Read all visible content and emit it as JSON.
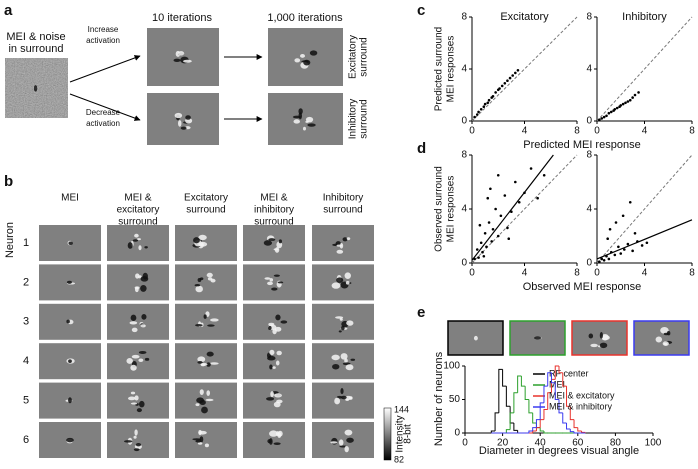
{
  "panel_a": {
    "label": "a",
    "input_caption": [
      "MEI & noise",
      "in surround"
    ],
    "increase": [
      "Increase",
      "activation"
    ],
    "decrease": [
      "Decrease",
      "activation"
    ],
    "col_10": "10 iterations",
    "col_1000": "1,000 iterations",
    "row_exc": [
      "Excitatory",
      "surround"
    ],
    "row_inh": [
      "Inhibitory",
      "surround"
    ]
  },
  "panel_b": {
    "label": "b",
    "columns": [
      [
        "MEI"
      ],
      [
        "MEI &",
        "excitatory",
        "surround"
      ],
      [
        "Excitatory",
        "surround"
      ],
      [
        "MEI &",
        "inhibitory",
        "surround"
      ],
      [
        "Inhibitory",
        "surround"
      ]
    ],
    "row_axis": "Neuron",
    "rows": [
      1,
      2,
      3,
      4,
      5,
      6
    ],
    "colorbar": {
      "max": 144,
      "min": 82,
      "label": [
        "Intensity",
        "8-bit"
      ]
    }
  },
  "chart_data": [
    {
      "type": "scatter",
      "label": "c",
      "ylabel": [
        "Predicted surround",
        "MEI responses"
      ],
      "xlabel": "Predicted MEI response",
      "xlim": [
        0,
        8
      ],
      "ylim": [
        0,
        8
      ],
      "xticks": [
        0,
        4,
        8
      ],
      "yticks": [
        0,
        4,
        8
      ],
      "subplots": [
        {
          "title": "Excitatory",
          "x": [
            0.2,
            0.4,
            0.5,
            0.7,
            0.9,
            1.0,
            1.2,
            1.3,
            1.5,
            1.6,
            1.8,
            2.0,
            2.1,
            2.3,
            2.5,
            2.7,
            2.9,
            3.1,
            3.3,
            3.5
          ],
          "y": [
            0.3,
            0.5,
            0.7,
            0.9,
            1.1,
            1.3,
            1.4,
            1.6,
            1.8,
            1.9,
            2.2,
            2.4,
            2.5,
            2.7,
            2.9,
            3.1,
            3.3,
            3.5,
            3.7,
            3.9
          ]
        },
        {
          "title": "Inhibitory",
          "x": [
            0.2,
            0.4,
            0.6,
            0.8,
            1.0,
            1.2,
            1.4,
            1.5,
            1.7,
            1.9,
            2.0,
            2.2,
            2.4,
            2.6,
            2.8,
            3.0,
            3.2,
            3.5
          ],
          "y": [
            0.1,
            0.2,
            0.3,
            0.4,
            0.6,
            0.7,
            0.8,
            0.9,
            1.0,
            1.1,
            1.2,
            1.3,
            1.4,
            1.5,
            1.6,
            1.8,
            2.0,
            2.2
          ]
        }
      ]
    },
    {
      "type": "scatter",
      "label": "d",
      "ylabel": [
        "Observed surround",
        "MEI responses"
      ],
      "xlabel": "Observed MEI response",
      "xlim": [
        0,
        8
      ],
      "ylim": [
        0,
        8
      ],
      "xticks": [
        0,
        4,
        8
      ],
      "yticks": [
        0,
        4,
        8
      ],
      "subplots": [
        {
          "x": [
            0.2,
            0.4,
            0.5,
            0.7,
            0.8,
            1.0,
            1.1,
            1.3,
            1.5,
            1.6,
            1.8,
            2.0,
            2.2,
            2.5,
            2.7,
            3.0,
            3.3,
            3.6,
            4.0,
            4.5,
            5.0,
            5.5,
            0.6,
            1.2,
            2.0,
            0.9,
            1.4,
            2.8
          ],
          "y": [
            0.3,
            1.0,
            0.4,
            1.5,
            0.8,
            2.2,
            1.2,
            3.0,
            1.6,
            2.5,
            4.0,
            2.0,
            3.5,
            5.0,
            2.6,
            3.8,
            6.0,
            4.5,
            5.2,
            7.0,
            4.8,
            6.5,
            2.8,
            4.8,
            6.5,
            0.5,
            5.5,
            1.8
          ],
          "fit_x": [
            0,
            6.2
          ],
          "fit_y": [
            0.2,
            8
          ]
        },
        {
          "x": [
            0.2,
            0.4,
            0.6,
            0.8,
            1.0,
            1.2,
            1.5,
            1.8,
            2.0,
            2.3,
            2.6,
            3.0,
            3.4,
            3.8,
            4.2,
            1.1,
            1.6,
            2.2,
            0.9,
            2.8,
            3.2
          ],
          "y": [
            0.1,
            0.3,
            0.2,
            0.5,
            0.3,
            0.8,
            0.6,
            1.2,
            0.7,
            1.0,
            1.4,
            0.9,
            1.6,
            1.3,
            1.5,
            2.5,
            3.0,
            3.5,
            1.8,
            4.5,
            2.2
          ],
          "fit_x": [
            0,
            8
          ],
          "fit_y": [
            0.3,
            3.2
          ]
        }
      ]
    },
    {
      "type": "histogram",
      "label": "e",
      "ylabel": "Number of neurons",
      "xlabel": "Diameter in degrees visual angle",
      "xlim": [
        0,
        100
      ],
      "ylim": [
        0,
        100
      ],
      "xticks": [
        0,
        20,
        40,
        60,
        80,
        100
      ],
      "yticks": [
        0,
        50,
        100
      ],
      "bins": [
        14,
        16,
        18,
        20,
        22,
        24,
        26,
        28,
        30,
        32,
        34,
        36,
        38,
        40,
        42,
        44,
        46,
        48,
        50,
        52,
        54,
        56,
        58,
        60,
        62,
        64
      ],
      "series": [
        {
          "name": "RF center",
          "color": "#000000",
          "values": [
            3,
            30,
            95,
            70,
            40,
            15,
            4,
            0,
            0,
            0,
            0,
            0,
            0,
            0,
            0,
            0,
            0,
            0,
            0,
            0,
            0,
            0,
            0,
            0,
            0
          ]
        },
        {
          "name": "MEI",
          "color": "#2ca02c",
          "values": [
            0,
            0,
            0,
            0,
            5,
            30,
            60,
            85,
            70,
            50,
            30,
            15,
            8,
            3,
            0,
            0,
            0,
            0,
            0,
            0,
            0,
            0,
            0,
            0,
            0
          ]
        },
        {
          "name": "MEI & excitatory",
          "color": "#e8322c",
          "values": [
            0,
            0,
            0,
            0,
            0,
            0,
            0,
            0,
            0,
            0,
            0,
            3,
            8,
            20,
            35,
            60,
            80,
            100,
            90,
            70,
            40,
            20,
            8,
            3,
            1
          ]
        },
        {
          "name": "MEI & inhibitory",
          "color": "#3a3af0",
          "values": [
            0,
            0,
            0,
            0,
            0,
            0,
            0,
            0,
            0,
            0,
            3,
            8,
            20,
            45,
            70,
            90,
            75,
            50,
            30,
            15,
            6,
            2,
            0,
            0,
            0
          ]
        }
      ]
    }
  ]
}
